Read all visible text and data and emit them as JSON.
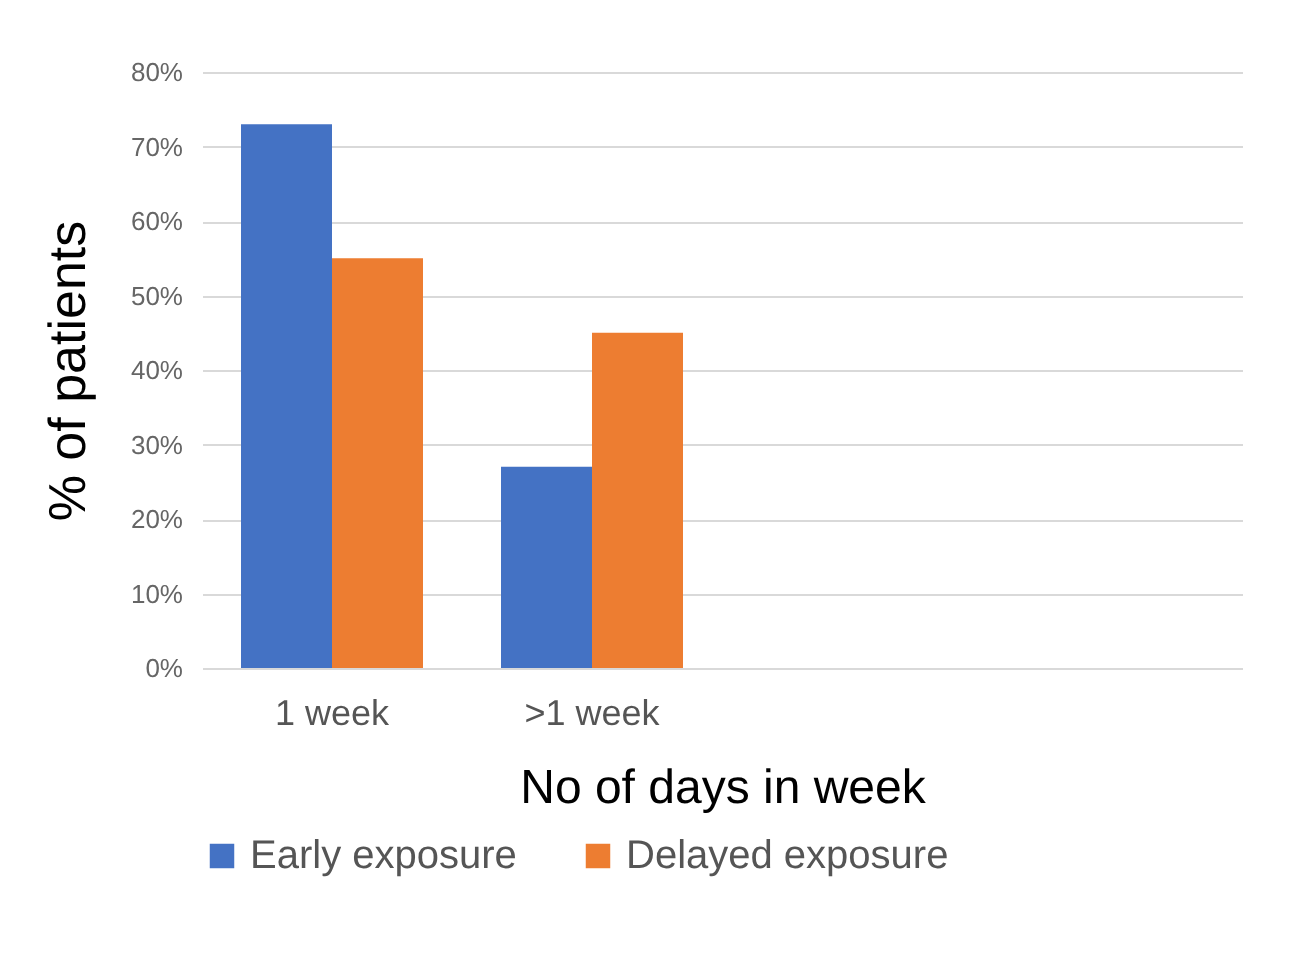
{
  "chart_data": {
    "type": "bar",
    "xlabel": "No of days in week",
    "ylabel": "% of patients",
    "categories": [
      "1 week",
      ">1 week",
      null,
      null
    ],
    "series": [
      {
        "name": "Early exposure",
        "color": "#4472c4",
        "values": [
          73,
          27,
          null,
          null
        ]
      },
      {
        "name": "Delayed exposure",
        "color": "#ed7d31",
        "values": [
          55,
          45,
          null,
          null
        ]
      }
    ],
    "ylim": [
      0,
      80
    ],
    "yticks": [
      {
        "value": 0,
        "label": "0%"
      },
      {
        "value": 10,
        "label": "10%"
      },
      {
        "value": 20,
        "label": "20%"
      },
      {
        "value": 30,
        "label": "30%"
      },
      {
        "value": 40,
        "label": "40%"
      },
      {
        "value": 50,
        "label": "50%"
      },
      {
        "value": 60,
        "label": "60%"
      },
      {
        "value": 70,
        "label": "70%"
      },
      {
        "value": 80,
        "label": "80%"
      }
    ],
    "grid": "y",
    "legend": "bottom"
  }
}
